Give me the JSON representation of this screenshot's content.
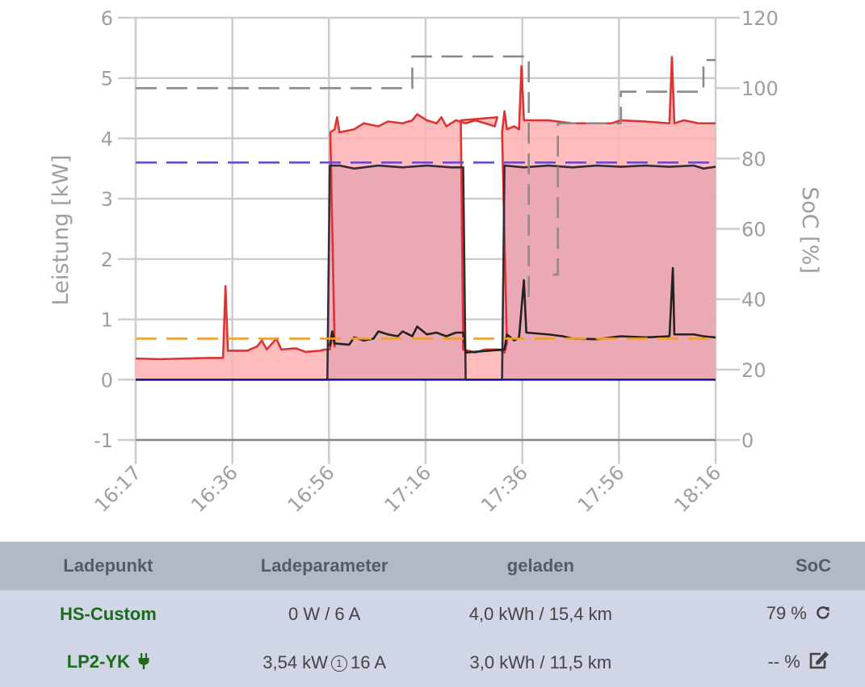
{
  "chart_data": {
    "type": "line",
    "x_ticks": [
      "16:17",
      "16:36",
      "16:56",
      "17:16",
      "17:36",
      "17:56",
      "18:16"
    ],
    "y_left": {
      "label": "Leistung [kW]",
      "ticks": [
        "-1",
        "0",
        "1",
        "2",
        "3",
        "4",
        "5",
        "6"
      ],
      "range": [
        -1,
        6
      ]
    },
    "y_right": {
      "label": "SoC [%]",
      "ticks": [
        "0",
        "20",
        "40",
        "60",
        "80",
        "100",
        "120"
      ],
      "range": [
        0,
        120
      ]
    },
    "grid": true,
    "x_range_minutes": [
      0,
      119.5
    ],
    "series": [
      {
        "color": "#dd3333",
        "fill": "#ffb0b0",
        "style": "solid",
        "points": [
          [
            0,
            0.35
          ],
          [
            5,
            0.34
          ],
          [
            10,
            0.35
          ],
          [
            15,
            0.36
          ],
          [
            18,
            0.36
          ],
          [
            18.5,
            1.55
          ],
          [
            19,
            0.48
          ],
          [
            23,
            0.48
          ],
          [
            25,
            0.55
          ],
          [
            26,
            0.65
          ],
          [
            27,
            0.5
          ],
          [
            29,
            0.68
          ],
          [
            30,
            0.5
          ],
          [
            33,
            0.52
          ],
          [
            35,
            0.46
          ],
          [
            38,
            0.48
          ],
          [
            39,
            0.5
          ],
          [
            40,
            0.5
          ],
          [
            40.6,
            0.75
          ],
          [
            41,
            0.55
          ],
          [
            40.1,
            4.1
          ],
          [
            41,
            4.15
          ],
          [
            41.5,
            4.35
          ],
          [
            42,
            4.1
          ],
          [
            45,
            4.15
          ],
          [
            47,
            4.25
          ],
          [
            50,
            4.2
          ],
          [
            52,
            4.28
          ],
          [
            55,
            4.25
          ],
          [
            57,
            4.3
          ],
          [
            58,
            4.4
          ],
          [
            60,
            4.3
          ],
          [
            62,
            4.25
          ],
          [
            63,
            4.35
          ],
          [
            64,
            4.2
          ],
          [
            66,
            4.3
          ],
          [
            68,
            4.25
          ],
          [
            70,
            4.3
          ],
          [
            72,
            4.25
          ],
          [
            74,
            4.2
          ],
          [
            74.5,
            4.35
          ],
          [
            67,
            4.3
          ],
          [
            67.5,
            0.5
          ],
          [
            70,
            0.45
          ],
          [
            72,
            0.5
          ],
          [
            75,
            0.5
          ],
          [
            76,
            0.45
          ],
          [
            76.5,
            0.6
          ],
          [
            75.5,
            4.1
          ],
          [
            76,
            4.45
          ],
          [
            76.5,
            4.15
          ],
          [
            78,
            4.2
          ],
          [
            79,
            4.15
          ],
          [
            79.5,
            5.2
          ],
          [
            80,
            4.3
          ],
          [
            85,
            4.3
          ],
          [
            90,
            4.25
          ],
          [
            95,
            4.25
          ],
          [
            98,
            4.25
          ],
          [
            100,
            4.3
          ],
          [
            105,
            4.28
          ],
          [
            110,
            4.25
          ],
          [
            110.5,
            5.35
          ],
          [
            111,
            4.25
          ],
          [
            113,
            4.3
          ],
          [
            116,
            4.25
          ],
          [
            119.5,
            4.25
          ]
        ]
      },
      {
        "color": "#3a2a38",
        "fill": "#e8a4b4",
        "style": "solid",
        "points": [
          [
            0,
            0
          ],
          [
            39.5,
            0
          ],
          [
            40,
            3.55
          ],
          [
            42,
            3.55
          ],
          [
            45,
            3.5
          ],
          [
            50,
            3.55
          ],
          [
            55,
            3.52
          ],
          [
            60,
            3.55
          ],
          [
            65,
            3.52
          ],
          [
            67.5,
            3.52
          ],
          [
            68,
            0
          ],
          [
            75.5,
            0
          ],
          [
            76,
            3.55
          ],
          [
            80,
            3.52
          ],
          [
            85,
            3.55
          ],
          [
            90,
            3.52
          ],
          [
            95,
            3.55
          ],
          [
            100,
            3.53
          ],
          [
            105,
            3.55
          ],
          [
            110,
            3.53
          ],
          [
            115,
            3.55
          ],
          [
            117,
            3.5
          ],
          [
            119.5,
            3.53
          ]
        ]
      },
      {
        "color": "#222222",
        "style": "solid",
        "points": [
          [
            40,
            0.55
          ],
          [
            40.5,
            0.8
          ],
          [
            41,
            0.6
          ],
          [
            44,
            0.58
          ],
          [
            45,
            0.7
          ],
          [
            47,
            0.65
          ],
          [
            49,
            0.68
          ],
          [
            50,
            0.8
          ],
          [
            52,
            0.75
          ],
          [
            54,
            0.72
          ],
          [
            55,
            0.8
          ],
          [
            57,
            0.72
          ],
          [
            58,
            0.88
          ],
          [
            60,
            0.75
          ],
          [
            62,
            0.78
          ],
          [
            64,
            0.72
          ],
          [
            66,
            0.78
          ],
          [
            67.5,
            0.78
          ],
          [
            68,
            0.45
          ],
          [
            76,
            0.5
          ],
          [
            76.5,
            0.75
          ],
          [
            78,
            0.65
          ],
          [
            79,
            0.7
          ],
          [
            80,
            1.65
          ],
          [
            80.5,
            0.78
          ],
          [
            85,
            0.75
          ],
          [
            88,
            0.72
          ],
          [
            90,
            0.68
          ],
          [
            95,
            0.67
          ],
          [
            98,
            0.7
          ],
          [
            100,
            0.72
          ],
          [
            105,
            0.7
          ],
          [
            110,
            0.72
          ],
          [
            110.7,
            1.85
          ],
          [
            111,
            0.75
          ],
          [
            115,
            0.75
          ],
          [
            117,
            0.72
          ],
          [
            119.5,
            0.7
          ]
        ]
      },
      {
        "color": "#6a4cc9",
        "style": "dashed",
        "points": [
          [
            0,
            3.6
          ],
          [
            119.5,
            3.6
          ]
        ]
      },
      {
        "color": "#f0a030",
        "style": "dashed",
        "points": [
          [
            0,
            0.68
          ],
          [
            119.5,
            0.68
          ]
        ]
      },
      {
        "color": "#8a8a8a",
        "style": "dashed",
        "axis": "right",
        "points": [
          [
            0,
            100
          ],
          [
            57,
            100
          ],
          [
            57,
            109
          ],
          [
            81,
            109
          ],
          [
            81,
            40
          ],
          [
            82,
            40
          ]
        ]
      },
      {
        "color": "#8a8a8a",
        "style": "dashed",
        "axis": "right",
        "points": [
          [
            86,
            47
          ],
          [
            87,
            47
          ],
          [
            87,
            90
          ],
          [
            100,
            90
          ],
          [
            100,
            99
          ],
          [
            117,
            99
          ],
          [
            117,
            108
          ],
          [
            119.5,
            108
          ]
        ]
      },
      {
        "color": "#1a1a8a",
        "style": "solid",
        "points": [
          [
            0,
            0
          ],
          [
            119.5,
            0
          ]
        ]
      },
      {
        "color": "#888888",
        "style": "solid",
        "points": [
          [
            0,
            -1
          ],
          [
            119.5,
            -1
          ]
        ]
      }
    ]
  },
  "table": {
    "headers": [
      "Ladepunkt",
      "Ladeparameter",
      "geladen",
      "SoC"
    ],
    "rows": [
      {
        "name": "HS-Custom",
        "params": "0 W / 6 A",
        "charged": "4,0 kWh / 15,4 km",
        "soc": "79 %",
        "soc_icon": "refresh-icon"
      },
      {
        "name": "LP2-YK",
        "name_icon": "plug-icon",
        "params_power": "3,54 kW",
        "params_phase": "1",
        "params_current": "16 A",
        "charged": "3,0 kWh / 11,5 km",
        "soc": "-- %",
        "soc_icon": "edit-icon"
      }
    ]
  }
}
